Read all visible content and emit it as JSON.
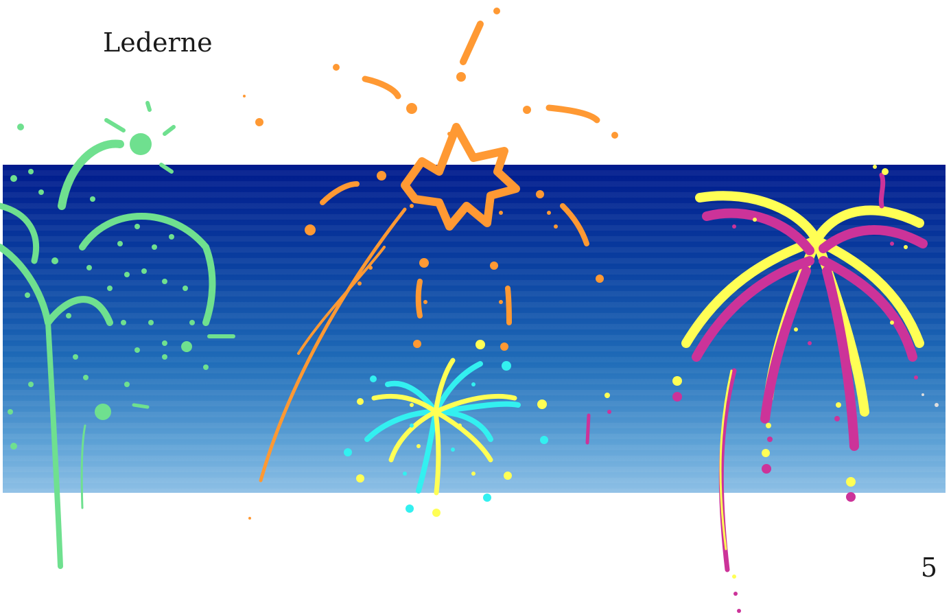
{
  "slide": {
    "title": "Lederne",
    "page_number": "5"
  },
  "illustration": {
    "description_icon": "fireworks-illustration",
    "colors": {
      "sky_top": "#001a8c",
      "sky_bottom": "#8ec0e6",
      "green": "#6fe08f",
      "orange": "#ff9933",
      "yellow": "#ffff55",
      "cyan": "#33f0f0",
      "magenta": "#cc3399"
    }
  }
}
